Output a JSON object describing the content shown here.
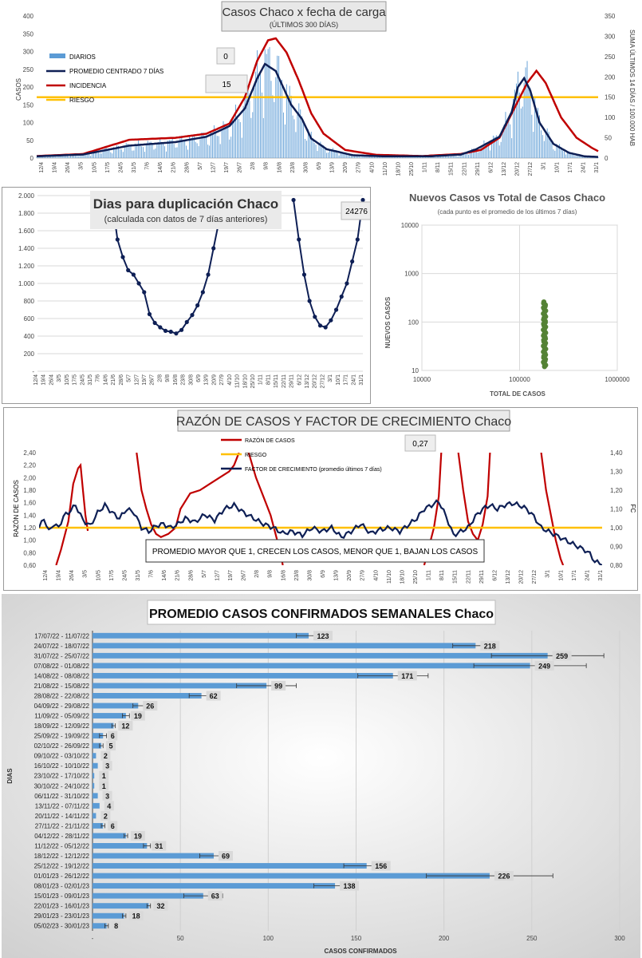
{
  "chart_data": [
    {
      "id": "casos",
      "type": "line",
      "title": "Casos Chaco x fecha de carga",
      "subtitle": "(ÚLTIMOS 300 DÍAS)",
      "ylabel": "CASOS",
      "y2label": "SUMA ÚLTIMOS 14 DÍAS / 100.000 HAB",
      "ylim": [
        0,
        400
      ],
      "y2lim": [
        0,
        350
      ],
      "yticks": [
        "0",
        "50",
        "100",
        "150",
        "200",
        "250",
        "300",
        "350",
        "400"
      ],
      "y2ticks": [
        "0",
        "50",
        "100",
        "150",
        "200",
        "250",
        "300",
        "350"
      ],
      "xticks": [
        "12/4",
        "19/4",
        "26/4",
        "3/5",
        "10/5",
        "17/5",
        "24/5",
        "31/5",
        "7/6",
        "14/6",
        "21/6",
        "28/6",
        "5/7",
        "12/7",
        "19/7",
        "26/7",
        "2/8",
        "9/8",
        "16/8",
        "23/8",
        "30/8",
        "6/9",
        "13/9",
        "20/9",
        "27/9",
        "4/10",
        "11/10",
        "18/10",
        "25/10",
        "1/11",
        "8/11",
        "15/11",
        "22/11",
        "29/11",
        "6/12",
        "13/12",
        "20/12",
        "27/12",
        "3/1",
        "10/1",
        "17/1",
        "24/1",
        "31/1"
      ],
      "legend": [
        "DIARIOS",
        "PROMEDIO CENTRADO 7 DÍAS",
        "INCIDENCIA",
        "RIESGO"
      ],
      "legend_position": "top-left",
      "annotations": [
        "0",
        "15"
      ],
      "riesgo": 150,
      "colors": {
        "diarios": "#5b9bd5",
        "promedio": "#0e1f55",
        "incidencia": "#c00000",
        "riesgo": "#ffc000"
      },
      "promedio_kp": [
        [
          0,
          5
        ],
        [
          30,
          10
        ],
        [
          60,
          35
        ],
        [
          90,
          45
        ],
        [
          110,
          60
        ],
        [
          125,
          90
        ],
        [
          135,
          140
        ],
        [
          143,
          225
        ],
        [
          148,
          265
        ],
        [
          155,
          245
        ],
        [
          165,
          150
        ],
        [
          172,
          110
        ],
        [
          178,
          55
        ],
        [
          188,
          25
        ],
        [
          205,
          8
        ],
        [
          225,
          5
        ],
        [
          255,
          5
        ],
        [
          275,
          10
        ],
        [
          285,
          25
        ],
        [
          300,
          60
        ],
        [
          308,
          130
        ],
        [
          312,
          200
        ],
        [
          316,
          225
        ],
        [
          320,
          190
        ],
        [
          326,
          100
        ],
        [
          335,
          40
        ],
        [
          345,
          15
        ],
        [
          355,
          5
        ],
        [
          365,
          3
        ]
      ],
      "incidencia_kp": [
        [
          0,
          5
        ],
        [
          30,
          10
        ],
        [
          60,
          45
        ],
        [
          90,
          50
        ],
        [
          110,
          60
        ],
        [
          125,
          85
        ],
        [
          135,
          150
        ],
        [
          143,
          240
        ],
        [
          150,
          290
        ],
        [
          155,
          295
        ],
        [
          162,
          260
        ],
        [
          170,
          190
        ],
        [
          178,
          110
        ],
        [
          186,
          60
        ],
        [
          200,
          20
        ],
        [
          220,
          8
        ],
        [
          250,
          5
        ],
        [
          275,
          10
        ],
        [
          288,
          20
        ],
        [
          300,
          50
        ],
        [
          310,
          125
        ],
        [
          318,
          185
        ],
        [
          324,
          215
        ],
        [
          330,
          185
        ],
        [
          340,
          100
        ],
        [
          350,
          50
        ],
        [
          360,
          25
        ],
        [
          365,
          15
        ]
      ]
    },
    {
      "id": "duplicacion",
      "type": "line",
      "title": "Dias para duplicación Chaco",
      "subtitle": "(calculada con datos de 7 días anteriores)",
      "annotation": "24276",
      "ylim": [
        0,
        2000
      ],
      "yticks": [
        "-",
        "200",
        "400",
        "600",
        "800",
        "1.000",
        "1.200",
        "1.400",
        "1.600",
        "1.800",
        "2.000"
      ],
      "xticks": [
        "12/4",
        "19/4",
        "26/4",
        "3/5",
        "10/5",
        "17/5",
        "24/5",
        "31/5",
        "7/6",
        "14/6",
        "21/6",
        "28/6",
        "5/7",
        "12/7",
        "19/7",
        "26/7",
        "2/8",
        "9/8",
        "16/8",
        "23/8",
        "30/8",
        "6/9",
        "13/9",
        "20/9",
        "27/9",
        "4/10",
        "11/10",
        "18/10",
        "25/10",
        "1/11",
        "8/11",
        "15/11",
        "22/11",
        "29/11",
        "6/12",
        "13/12",
        "20/12",
        "27/12",
        "3/1",
        "10/1",
        "17/1",
        "24/1",
        "31/1"
      ],
      "color": "#0e1f55",
      "seg1": [
        [
          14,
          1950
        ],
        [
          15,
          1500
        ],
        [
          16,
          1300
        ],
        [
          17,
          1150
        ],
        [
          18,
          1100
        ],
        [
          19,
          1000
        ],
        [
          20,
          900
        ],
        [
          21,
          650
        ],
        [
          22,
          550
        ],
        [
          23,
          500
        ],
        [
          24,
          460
        ],
        [
          25,
          450
        ],
        [
          26,
          430
        ],
        [
          27,
          470
        ],
        [
          28,
          560
        ],
        [
          29,
          640
        ],
        [
          30,
          750
        ],
        [
          31,
          900
        ],
        [
          32,
          1100
        ],
        [
          33,
          1400
        ],
        [
          34,
          1700
        ],
        [
          35,
          1950
        ]
      ],
      "seg2": [
        [
          48,
          1950
        ],
        [
          49,
          1500
        ],
        [
          50,
          1100
        ],
        [
          51,
          800
        ],
        [
          52,
          620
        ],
        [
          53,
          520
        ],
        [
          54,
          500
        ],
        [
          55,
          580
        ],
        [
          56,
          700
        ],
        [
          57,
          850
        ],
        [
          58,
          1000
        ],
        [
          59,
          1250
        ],
        [
          60,
          1500
        ],
        [
          61,
          1950
        ]
      ]
    },
    {
      "id": "nuevos_vs_total",
      "type": "scatter",
      "title": "Nuevos Casos vs Total de Casos Chaco",
      "subtitle": "(cada punto es el promedio de los últimos 7 días)",
      "xlabel": "TOTAL DE CASOS",
      "ylabel": "NUEVOS CASOS",
      "xscale": "log",
      "yscale": "log",
      "xticks": [
        "10000",
        "100000",
        "1000000"
      ],
      "yticks": [
        "10",
        "100",
        "1000",
        "10000"
      ],
      "total_casos": 180000,
      "nuevos_range": [
        12,
        260
      ],
      "color": "#548235"
    },
    {
      "id": "razon",
      "type": "line",
      "title": "RAZÓN DE CASOS Y FACTOR DE CRECIMIENTO Chaco",
      "ylabel": "RAZÓN DE CASOS",
      "y2label": "FC",
      "ylim": [
        0.6,
        2.4
      ],
      "y2lim": [
        0.8,
        1.4
      ],
      "yticks": [
        "0,60",
        "0,80",
        "1,00",
        "1,20",
        "1,40",
        "1,60",
        "1,80",
        "2,00",
        "2,20",
        "2,40"
      ],
      "y2ticks": [
        "0,80",
        "0,90",
        "1,00",
        "1,10",
        "1,20",
        "1,30",
        "1,40"
      ],
      "xticks": [
        "12/4",
        "19/4",
        "26/4",
        "3/5",
        "10/5",
        "17/5",
        "24/5",
        "31/5",
        "7/6",
        "14/6",
        "21/6",
        "28/6",
        "5/7",
        "12/7",
        "19/7",
        "26/7",
        "2/8",
        "9/8",
        "16/8",
        "23/8",
        "30/8",
        "6/9",
        "13/9",
        "20/9",
        "27/9",
        "4/10",
        "11/10",
        "18/10",
        "25/10",
        "1/11",
        "8/11",
        "15/11",
        "22/11",
        "29/11",
        "6/12",
        "13/12",
        "20/12",
        "27/12",
        "3/1",
        "10/1",
        "17/1",
        "24/1",
        "31/1"
      ],
      "legend": [
        "RAZÓN DE CASOS",
        "RIESGO",
        "FACTOR DE CRECIMIENTO (promedio últimos 7 días)"
      ],
      "legend_position": "top-center",
      "annotation": "0,27",
      "note": "PROMEDIO MAYOR QUE 1, CRECEN LOS CASOS, MENOR QUE 1, BAJAN LOS CASOS",
      "riesgo": 1.0,
      "colors": {
        "razon": "#c00000",
        "riesgo": "#ffc000",
        "fc": "#0e1f55"
      },
      "razon_segments": [
        [
          [
            7,
            0.6
          ],
          [
            9,
            0.85
          ],
          [
            12,
            1.3
          ],
          [
            14,
            1.9
          ],
          [
            16,
            2.15
          ],
          [
            17,
            2.2
          ],
          [
            18,
            1.8
          ],
          [
            19,
            1.4
          ],
          [
            20,
            1.15
          ]
        ],
        [
          [
            40,
            2.4
          ],
          [
            42,
            1.8
          ],
          [
            44,
            1.5
          ],
          [
            46,
            1.25
          ],
          [
            48,
            1.1
          ],
          [
            50,
            1.05
          ],
          [
            53,
            1.1
          ],
          [
            56,
            1.2
          ],
          [
            58,
            1.5
          ],
          [
            62,
            1.75
          ],
          [
            66,
            1.8
          ],
          [
            70,
            1.9
          ],
          [
            74,
            2.0
          ],
          [
            78,
            2.1
          ],
          [
            80,
            2.2
          ],
          [
            81,
            2.3
          ],
          [
            82,
            2.4
          ]
        ],
        [
          [
            86,
            2.4
          ],
          [
            89,
            2.0
          ],
          [
            92,
            1.7
          ],
          [
            95,
            1.4
          ],
          [
            97,
            1.1
          ],
          [
            99,
            0.8
          ],
          [
            100,
            0.6
          ]
        ],
        [
          [
            158,
            0.6
          ],
          [
            160,
            0.9
          ],
          [
            162,
            1.2
          ],
          [
            164,
            1.7
          ],
          [
            165,
            2.4
          ]
        ],
        [
          [
            172,
            2.4
          ],
          [
            174,
            1.8
          ],
          [
            176,
            1.3
          ],
          [
            178,
            1.1
          ],
          [
            180,
            1.0
          ],
          [
            182,
            1.25
          ],
          [
            184,
            1.7
          ],
          [
            185,
            2.4
          ]
        ],
        [
          [
            206,
            2.4
          ],
          [
            208,
            1.8
          ],
          [
            210,
            1.4
          ],
          [
            212,
            1.0
          ],
          [
            214,
            0.7
          ],
          [
            215,
            0.6
          ]
        ]
      ],
      "fc_kp": [
        [
          0,
          1.0
        ],
        [
          2,
          1.05
        ],
        [
          4,
          0.98
        ],
        [
          6,
          1.02
        ],
        [
          8,
          1.0
        ],
        [
          10,
          1.06
        ],
        [
          12,
          1.08
        ],
        [
          15,
          1.12
        ],
        [
          18,
          1.04
        ],
        [
          21,
          1.01
        ],
        [
          24,
          1.08
        ],
        [
          27,
          1.12
        ],
        [
          30,
          1.08
        ],
        [
          33,
          1.05
        ],
        [
          36,
          1.1
        ],
        [
          39,
          1.08
        ],
        [
          42,
          1.0
        ],
        [
          45,
          0.98
        ],
        [
          48,
          1.01
        ],
        [
          51,
          1.02
        ],
        [
          54,
          1.0
        ],
        [
          57,
          1.02
        ],
        [
          60,
          1.05
        ],
        [
          64,
          1.03
        ],
        [
          68,
          1.07
        ],
        [
          72,
          1.04
        ],
        [
          76,
          1.1
        ],
        [
          80,
          1.12
        ],
        [
          84,
          1.08
        ],
        [
          88,
          1.05
        ],
        [
          92,
          1.02
        ],
        [
          96,
          1.0
        ],
        [
          100,
          0.97
        ],
        [
          104,
          0.98
        ],
        [
          108,
          0.96
        ],
        [
          112,
          1.0
        ],
        [
          116,
          0.98
        ],
        [
          120,
          1.0
        ],
        [
          124,
          0.95
        ],
        [
          128,
          0.98
        ],
        [
          132,
          1.02
        ],
        [
          136,
          0.97
        ],
        [
          140,
          0.99
        ],
        [
          144,
          1.0
        ],
        [
          148,
          0.98
        ],
        [
          152,
          1.02
        ],
        [
          155,
          1.05
        ],
        [
          158,
          1.1
        ],
        [
          161,
          1.12
        ],
        [
          164,
          1.14
        ],
        [
          167,
          1.06
        ],
        [
          170,
          0.96
        ],
        [
          173,
          0.98
        ],
        [
          176,
          1.0
        ],
        [
          179,
          1.06
        ],
        [
          182,
          1.1
        ],
        [
          185,
          1.12
        ],
        [
          188,
          1.1
        ],
        [
          191,
          1.12
        ],
        [
          194,
          1.13
        ],
        [
          197,
          1.12
        ],
        [
          200,
          1.1
        ],
        [
          203,
          1.06
        ],
        [
          206,
          1.0
        ],
        [
          209,
          0.98
        ],
        [
          212,
          0.96
        ],
        [
          215,
          0.94
        ],
        [
          218,
          0.92
        ],
        [
          221,
          0.9
        ],
        [
          224,
          0.88
        ],
        [
          226,
          0.86
        ],
        [
          228,
          0.82
        ],
        [
          230,
          0.81
        ]
      ]
    },
    {
      "id": "semanales",
      "type": "bar",
      "orientation": "horizontal",
      "title": "PROMEDIO CASOS CONFIRMADOS SEMANALES Chaco",
      "xlabel": "CASOS CONFIRMADOS",
      "ylabel": "DIAS",
      "xlim": [
        0,
        300
      ],
      "xticks": [
        "-",
        "50",
        "100",
        "150",
        "200",
        "250",
        "300"
      ],
      "color": "#5b9bd5",
      "categories": [
        "17/07/22 - 11/07/22",
        "24/07/22 - 18/07/22",
        "31/07/22 - 25/07/22",
        "07/08/22 - 01/08/22",
        "14/08/22 - 08/08/22",
        "21/08/22 - 15/08/22",
        "28/08/22 - 22/08/22",
        "04/09/22 - 29/08/22",
        "11/09/22 - 05/09/22",
        "18/09/22 - 12/09/22",
        "25/09/22 - 19/09/22",
        "02/10/22 - 26/09/22",
        "09/10/22 - 03/10/22",
        "16/10/22 - 10/10/22",
        "23/10/22 - 17/10/22",
        "30/10/22 - 24/10/22",
        "06/11/22 - 31/10/22",
        "13/11/22 - 07/11/22",
        "20/11/22 - 14/11/22",
        "27/11/22 - 21/11/22",
        "04/12/22 - 28/11/22",
        "11/12/22 - 05/12/22",
        "18/12/22 - 12/12/22",
        "25/12/22 - 19/12/22",
        "01/01/23 - 26/12/22",
        "08/01/23 - 02/01/23",
        "15/01/23 - 09/01/23",
        "22/01/23 - 16/01/23",
        "29/01/23 - 23/01/23",
        "05/02/23 - 30/01/23"
      ],
      "values": [
        123,
        218,
        259,
        249,
        171,
        99,
        62,
        26,
        19,
        12,
        6,
        5,
        2,
        3,
        1,
        1,
        3,
        4,
        2,
        6,
        19,
        31,
        69,
        156,
        226,
        138,
        63,
        32,
        18,
        8
      ],
      "errors": [
        7,
        13,
        32,
        32,
        20,
        17,
        7,
        3,
        2,
        1,
        2,
        1,
        0,
        0,
        0,
        0,
        0,
        0,
        0,
        1,
        1,
        2,
        8,
        13,
        36,
        12,
        11,
        1,
        1,
        1
      ]
    }
  ]
}
